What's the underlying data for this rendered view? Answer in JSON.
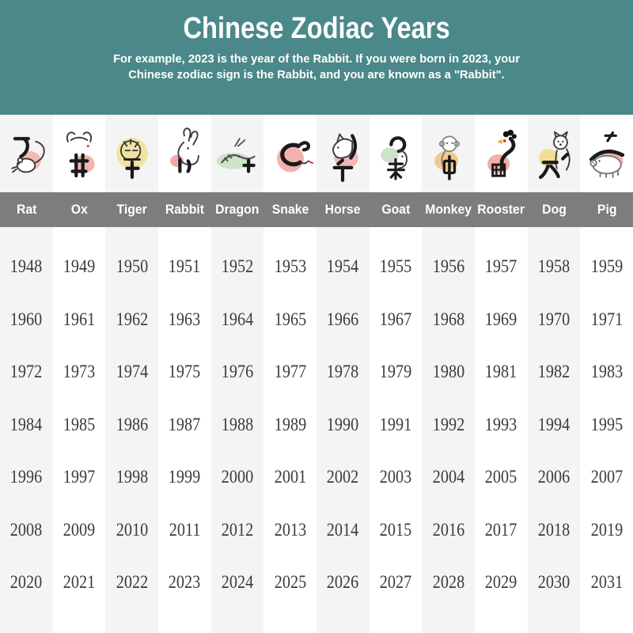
{
  "header": {
    "title": "Chinese Zodiac Years",
    "subtitle_line1": "For example, 2023 is the year of the Rabbit. If you were born in 2023, your",
    "subtitle_line2": "Chinese zodiac sign is the Rabbit, and you are known as a \"Rabbit\"."
  },
  "chart_data": {
    "type": "table",
    "title": "Chinese Zodiac Years",
    "columns": [
      "Rat",
      "Ox",
      "Tiger",
      "Rabbit",
      "Dragon",
      "Snake",
      "Horse",
      "Goat",
      "Monkey",
      "Rooster",
      "Dog",
      "Pig"
    ],
    "rows": [
      [
        1948,
        1949,
        1950,
        1951,
        1952,
        1953,
        1954,
        1955,
        1956,
        1957,
        1958,
        1959
      ],
      [
        1960,
        1961,
        1962,
        1963,
        1964,
        1965,
        1966,
        1967,
        1968,
        1969,
        1970,
        1971
      ],
      [
        1972,
        1973,
        1974,
        1975,
        1976,
        1977,
        1978,
        1979,
        1980,
        1981,
        1982,
        1983
      ],
      [
        1984,
        1985,
        1986,
        1987,
        1988,
        1989,
        1990,
        1991,
        1992,
        1993,
        1994,
        1995
      ],
      [
        1996,
        1997,
        1998,
        1999,
        2000,
        2001,
        2002,
        2003,
        2004,
        2005,
        2006,
        2007
      ],
      [
        2008,
        2009,
        2010,
        2011,
        2012,
        2013,
        2014,
        2015,
        2016,
        2017,
        2018,
        2019
      ],
      [
        2020,
        2021,
        2022,
        2023,
        2024,
        2025,
        2026,
        2027,
        2028,
        2029,
        2030,
        2031
      ]
    ]
  },
  "zodiac_icons": [
    {
      "id": "rat",
      "name": "Rat",
      "glyph": "子",
      "blob_color": "#f4b9b6"
    },
    {
      "id": "ox",
      "name": "Ox",
      "glyph": "丑",
      "blob_color": "#f4b3b1"
    },
    {
      "id": "tiger",
      "name": "Tiger",
      "glyph": "寅",
      "blob_color": "#f1e2a3"
    },
    {
      "id": "rabbit",
      "name": "Rabbit",
      "glyph": "卯",
      "blob_color": "#f2a9a7"
    },
    {
      "id": "dragon",
      "name": "Dragon",
      "glyph": "辰",
      "blob_color": "#cde4c9"
    },
    {
      "id": "snake",
      "name": "Snake",
      "glyph": "巳",
      "blob_color": "#f3b2af"
    },
    {
      "id": "horse",
      "name": "Horse",
      "glyph": "午",
      "blob_color": "#f3b7b5"
    },
    {
      "id": "goat",
      "name": "Goat",
      "glyph": "未",
      "blob_color": "#cbe3c6"
    },
    {
      "id": "monkey",
      "name": "Monkey",
      "glyph": "申",
      "blob_color": "#f5c88d"
    },
    {
      "id": "rooster",
      "name": "Rooster",
      "glyph": "酉",
      "blob_color": "#f3aeac"
    },
    {
      "id": "dog",
      "name": "Dog",
      "glyph": "戌",
      "blob_color": "#f2dd90"
    },
    {
      "id": "pig",
      "name": "Pig",
      "glyph": "亥",
      "blob_color": "#f4b5b3"
    }
  ],
  "style": {
    "header_bg": "#4b8889",
    "header_text": "#ffffff",
    "names_bar_bg": "#7d7d7d",
    "name_text": "#ffffff",
    "column_stripe": "#f4f4f4",
    "column_white": "#ffffff",
    "year_text": "#3b3b3b"
  }
}
